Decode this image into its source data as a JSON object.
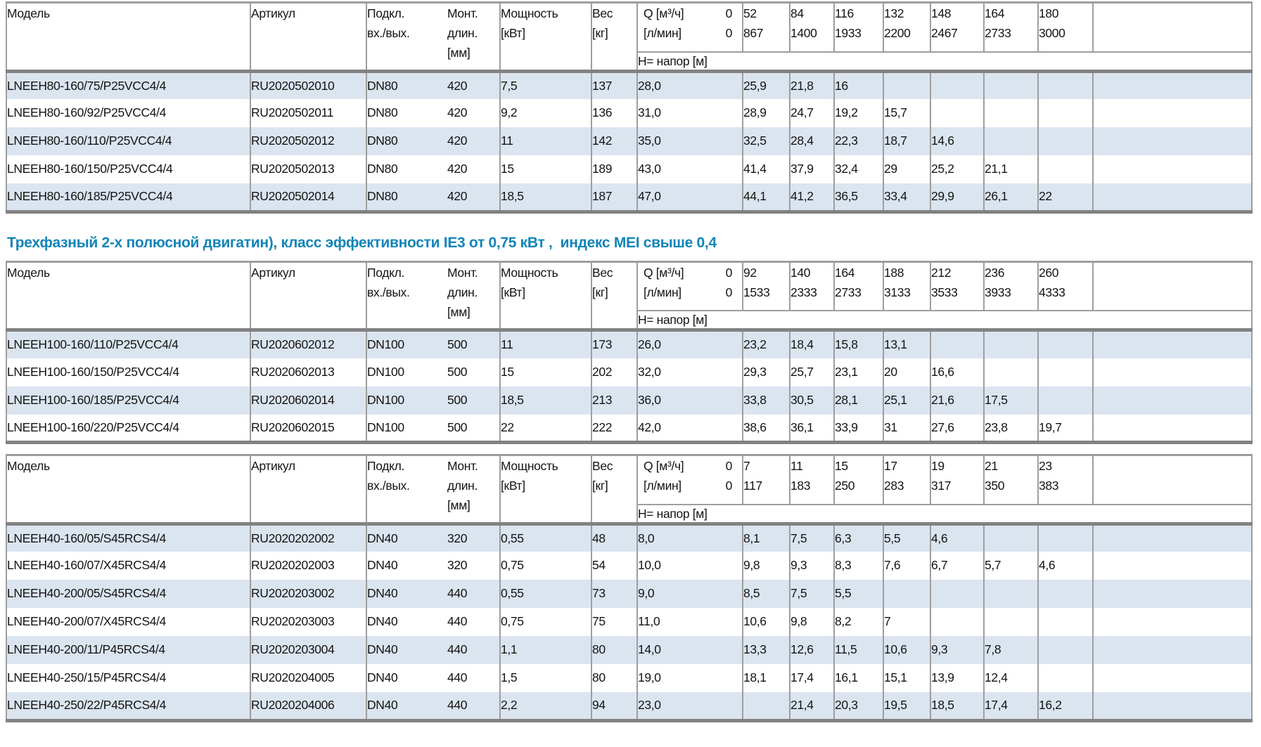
{
  "section_title": "Трехфазный 2-х полюсной двигатин), класс эффективности IE3 от 0,75 кВт ,  индекс MEI свыше 0,4",
  "colors": {
    "title_accent": "#1185b8",
    "row_stripe": "#dbe5f0",
    "grid_line": "#9e9e9e",
    "grid_heavy": "#828282"
  },
  "header": {
    "model": "Модель",
    "article": "Артикул",
    "conn_line1": "Подкл.",
    "conn_line2": "вх./вых.",
    "mount_line1": "Монт.",
    "mount_line2": "длин.",
    "mount_line3": "[мм]",
    "power_line1": "Мощность",
    "power_line2": "[кВт]",
    "weight_line1": "Вес",
    "weight_line2": "[кг]",
    "q_line1": "Q [м³/ч]",
    "q_line2": "[л/мин]",
    "q_zero1": "0",
    "q_zero2": "0",
    "h_label": "Н= напор [м]"
  },
  "tables": [
    {
      "name": "LNEEH80 series",
      "q_align": "first-right",
      "dn_align": "left",
      "flow_columns": [
        {
          "m3h": "52",
          "lmin": "867"
        },
        {
          "m3h": "84",
          "lmin": "1400"
        },
        {
          "m3h": "116",
          "lmin": "1933"
        },
        {
          "m3h": "132",
          "lmin": "2200"
        },
        {
          "m3h": "148",
          "lmin": "2467"
        },
        {
          "m3h": "164",
          "lmin": "2733"
        },
        {
          "m3h": "180",
          "lmin": "3000"
        }
      ],
      "rows": [
        {
          "model": "LNEEH80-160/75/P25VCC4/4",
          "article": "RU2020502010",
          "dn": "DN80",
          "mount_length": "420",
          "power_kw": "7,5",
          "weight_kg": "137",
          "head_m": [
            "28,0",
            "25,9",
            "21,8",
            "16",
            "",
            "",
            "",
            ""
          ]
        },
        {
          "model": "LNEEH80-160/92/P25VCC4/4",
          "article": "RU2020502011",
          "dn": "DN80",
          "mount_length": "420",
          "power_kw": "9,2",
          "weight_kg": "136",
          "head_m": [
            "31,0",
            "28,9",
            "24,7",
            "19,2",
            "15,7",
            "",
            "",
            ""
          ]
        },
        {
          "model": "LNEEH80-160/110/P25VCC4/4",
          "article": "RU2020502012",
          "dn": "DN80",
          "mount_length": "420",
          "power_kw": "11",
          "weight_kg": "142",
          "head_m": [
            "35,0",
            "32,5",
            "28,4",
            "22,3",
            "18,7",
            "14,6",
            "",
            ""
          ]
        },
        {
          "model": "LNEEH80-160/150/P25VCC4/4",
          "article": "RU2020502013",
          "dn": "DN80",
          "mount_length": "420",
          "power_kw": "15",
          "weight_kg": "189",
          "head_m": [
            "43,0",
            "41,4",
            "37,9",
            "32,4",
            "29",
            "25,2",
            "21,1",
            ""
          ]
        },
        {
          "model": "LNEEH80-160/185/P25VCC4/4",
          "article": "RU2020502014",
          "dn": "DN80",
          "mount_length": "420",
          "power_kw": "18,5",
          "weight_kg": "187",
          "head_m": [
            "47,0",
            "44,1",
            "41,2",
            "36,5",
            "33,4",
            "29,9",
            "26,1",
            "22"
          ]
        }
      ]
    },
    {
      "name": "LNEEH100 series",
      "q_align": "first-right",
      "dn_align": "right",
      "flow_columns": [
        {
          "m3h": "92",
          "lmin": "1533"
        },
        {
          "m3h": "140",
          "lmin": "2333"
        },
        {
          "m3h": "164",
          "lmin": "2733"
        },
        {
          "m3h": "188",
          "lmin": "3133"
        },
        {
          "m3h": "212",
          "lmin": "3533"
        },
        {
          "m3h": "236",
          "lmin": "3933"
        },
        {
          "m3h": "260",
          "lmin": "4333"
        }
      ],
      "rows": [
        {
          "model": "LNEEH100-160/110/P25VCC4/4",
          "article": "RU2020602012",
          "dn": "DN100",
          "mount_length": "500",
          "power_kw": "11",
          "weight_kg": "173",
          "head_m": [
            "26,0",
            "23,2",
            "18,4",
            "15,8",
            "13,1",
            "",
            "",
            ""
          ]
        },
        {
          "model": "LNEEH100-160/150/P25VCC4/4",
          "article": "RU2020602013",
          "dn": "DN100",
          "mount_length": "500",
          "power_kw": "15",
          "weight_kg": "202",
          "head_m": [
            "32,0",
            "29,3",
            "25,7",
            "23,1",
            "20",
            "16,6",
            "",
            ""
          ]
        },
        {
          "model": "LNEEH100-160/185/P25VCC4/4",
          "article": "RU2020602014",
          "dn": "DN100",
          "mount_length": "500",
          "power_kw": "18,5",
          "weight_kg": "213",
          "head_m": [
            "36,0",
            "33,8",
            "30,5",
            "28,1",
            "25,1",
            "21,6",
            "17,5",
            ""
          ]
        },
        {
          "model": "LNEEH100-160/220/P25VCC4/4",
          "article": "RU2020602015",
          "dn": "DN100",
          "mount_length": "500",
          "power_kw": "22",
          "weight_kg": "222",
          "head_m": [
            "42,0",
            "38,6",
            "36,1",
            "33,9",
            "31",
            "27,6",
            "23,8",
            "19,7"
          ]
        }
      ]
    },
    {
      "name": "LNEEH40 series",
      "q_align": "all-right",
      "dn_align": "left",
      "flow_columns": [
        {
          "m3h": "7",
          "lmin": "117"
        },
        {
          "m3h": "11",
          "lmin": "183"
        },
        {
          "m3h": "15",
          "lmin": "250"
        },
        {
          "m3h": "17",
          "lmin": "283"
        },
        {
          "m3h": "19",
          "lmin": "317"
        },
        {
          "m3h": "21",
          "lmin": "350"
        },
        {
          "m3h": "23",
          "lmin": "383"
        }
      ],
      "rows": [
        {
          "model": "LNEEH40-160/05/S45RCS4/4",
          "article": "RU2020202002",
          "dn": "DN40",
          "mount_length": "320",
          "power_kw": "0,55",
          "weight_kg": "48",
          "head_m": [
            "8,0",
            "8,1",
            "7,5",
            "6,3",
            "5,5",
            "4,6",
            "",
            ""
          ]
        },
        {
          "model": "LNEEH40-160/07/X45RCS4/4",
          "article": "RU2020202003",
          "dn": "DN40",
          "mount_length": "320",
          "power_kw": "0,75",
          "weight_kg": "54",
          "head_m": [
            "10,0",
            "9,8",
            "9,3",
            "8,3",
            "7,6",
            "6,7",
            "5,7",
            "4,6"
          ]
        },
        {
          "model": "LNEEH40-200/05/S45RCS4/4",
          "article": "RU2020203002",
          "dn": "DN40",
          "mount_length": "440",
          "power_kw": "0,55",
          "weight_kg": "73",
          "head_m": [
            "9,0",
            "8,5",
            "7,5",
            "5,5",
            "",
            "",
            "",
            ""
          ]
        },
        {
          "model": "LNEEH40-200/07/X45RCS4/4",
          "article": "RU2020203003",
          "dn": "DN40",
          "mount_length": "440",
          "power_kw": "0,75",
          "weight_kg": "75",
          "head_m": [
            "11,0",
            "10,6",
            "9,8",
            "8,2",
            "7",
            "",
            "",
            ""
          ]
        },
        {
          "model": "LNEEH40-200/11/P45RCS4/4",
          "article": "RU2020203004",
          "dn": "DN40",
          "mount_length": "440",
          "power_kw": "1,1",
          "weight_kg": "80",
          "head_m": [
            "14,0",
            "13,3",
            "12,6",
            "11,5",
            "10,6",
            "9,3",
            "7,8",
            ""
          ]
        },
        {
          "model": "LNEEH40-250/15/P45RCS4/4",
          "article": "RU2020204005",
          "dn": "DN40",
          "mount_length": "440",
          "power_kw": "1,5",
          "weight_kg": "80",
          "head_m": [
            "19,0",
            "18,1",
            "17,4",
            "16,1",
            "15,1",
            "13,9",
            "12,4",
            ""
          ]
        },
        {
          "model": "LNEEH40-250/22/P45RCS4/4",
          "article": "RU2020204006",
          "dn": "DN40",
          "mount_length": "440",
          "power_kw": "2,2",
          "weight_kg": "94",
          "head_m": [
            "23,0",
            "",
            "21,4",
            "20,3",
            "19,5",
            "18,5",
            "17,4",
            "16,2"
          ]
        }
      ]
    }
  ]
}
